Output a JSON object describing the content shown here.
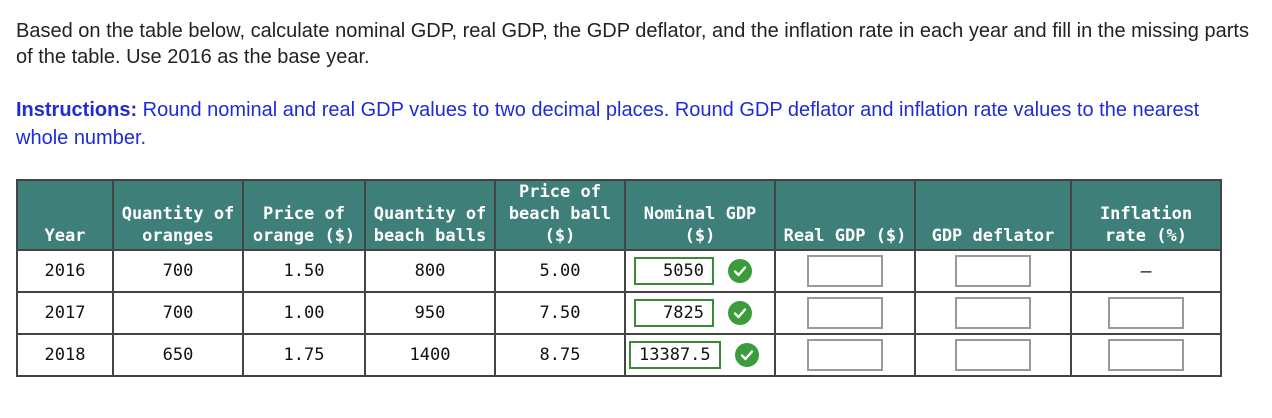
{
  "question": "Based on the table below, calculate nominal GDP, real GDP, the GDP deflator, and the inflation rate in each year and fill in the missing parts of the table. Use 2016 as the base year.",
  "instructions": {
    "label": "Instructions:",
    "text": " Round nominal and real GDP values to two decimal places. Round GDP deflator and inflation rate values to the nearest whole number."
  },
  "table": {
    "headers": {
      "year": "Year",
      "qty_oranges": "Quantity of oranges",
      "price_orange": "Price of orange ($)",
      "qty_beach_balls": "Quantity of beach balls",
      "price_beach_ball": "Price of beach ball ($)",
      "nominal_gdp": "Nominal GDP ($)",
      "real_gdp": "Real GDP ($)",
      "gdp_deflator": "GDP deflator",
      "inflation_rate": "Inflation rate (%)"
    },
    "rows": [
      {
        "year": "2016",
        "qty_oranges": "700",
        "price_orange": "1.50",
        "qty_beach_balls": "800",
        "price_beach_ball": "5.00",
        "nominal_gdp": "5050",
        "inflation": "–"
      },
      {
        "year": "2017",
        "qty_oranges": "700",
        "price_orange": "1.00",
        "qty_beach_balls": "950",
        "price_beach_ball": "7.50",
        "nominal_gdp": "7825",
        "inflation": ""
      },
      {
        "year": "2018",
        "qty_oranges": "650",
        "price_orange": "1.75",
        "qty_beach_balls": "1400",
        "price_beach_ball": "8.75",
        "nominal_gdp": "13387.5",
        "inflation": ""
      }
    ]
  },
  "icons": {
    "correct": "check-circle-icon"
  },
  "colors": {
    "header_bg": "#3e7f79",
    "correct_green": "#3a9c3a",
    "instructions_blue": "#1f2bd6"
  }
}
